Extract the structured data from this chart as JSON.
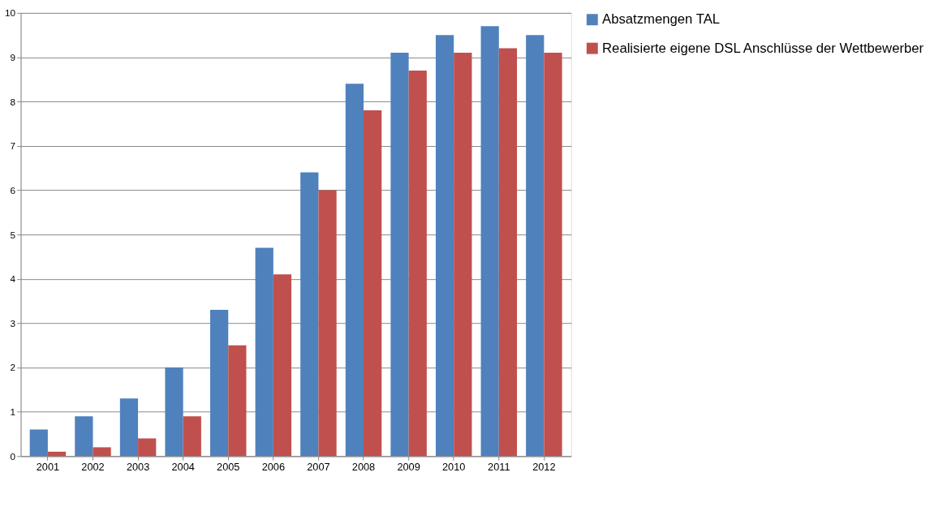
{
  "chart_data": {
    "type": "bar",
    "categories": [
      "2001",
      "2002",
      "2003",
      "2004",
      "2005",
      "2006",
      "2007",
      "2008",
      "2009",
      "2010",
      "2011",
      "2012"
    ],
    "series": [
      {
        "name": "Absatzmengen TAL",
        "color": "#4f81bd",
        "values": [
          0.6,
          0.9,
          1.3,
          2.0,
          3.3,
          4.7,
          6.4,
          8.4,
          9.1,
          9.5,
          9.7,
          9.5
        ]
      },
      {
        "name": "Realisierte eigene DSL Anschlüsse der Wettbewerber",
        "color": "#c0504d",
        "values": [
          0.1,
          0.2,
          0.4,
          0.9,
          2.5,
          4.1,
          6.0,
          7.8,
          8.7,
          9.1,
          9.2,
          9.1
        ]
      }
    ],
    "ylim": [
      0,
      10
    ],
    "yticks": [
      0,
      1,
      2,
      3,
      4,
      5,
      6,
      7,
      8,
      9,
      10
    ],
    "grid": "y",
    "legend": "right"
  }
}
